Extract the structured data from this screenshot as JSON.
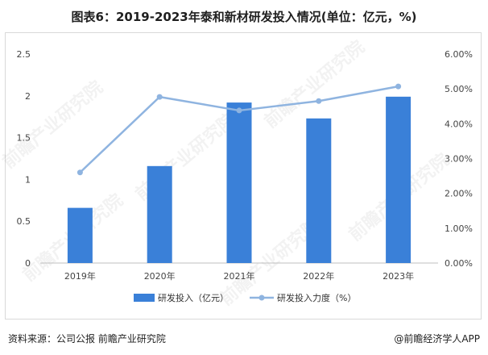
{
  "title": "图表6：2019-2023年泰和新材研发投入情况(单位：亿元，%)",
  "chart_data": {
    "type": "bar+line",
    "categories": [
      "2019年",
      "2020年",
      "2021年",
      "2022年",
      "2023年"
    ],
    "series": [
      {
        "name": "研发投入（亿元）",
        "type": "bar",
        "axis": "left",
        "color": "#3a80d8",
        "values": [
          0.66,
          1.16,
          1.92,
          1.73,
          1.99
        ]
      },
      {
        "name": "研发投入力度（%）",
        "type": "line",
        "axis": "right",
        "color": "#8fb4e0",
        "values": [
          2.6,
          4.77,
          4.38,
          4.65,
          5.07
        ]
      }
    ],
    "y_left": {
      "min": 0,
      "max": 2.5,
      "ticks": [
        "0",
        "0.5",
        "1",
        "1.5",
        "2",
        "2.5"
      ]
    },
    "y_right": {
      "min": 0,
      "max": 6,
      "ticks": [
        "0.00%",
        "1.00%",
        "2.00%",
        "3.00%",
        "4.00%",
        "5.00%",
        "6.00%"
      ]
    },
    "grid": false,
    "legend_position": "bottom"
  },
  "footer": {
    "source": "资料来源：公司公报 前瞻产业研究院",
    "credit": "@前瞻经济学人APP"
  },
  "watermark": {
    "text": "前瞻产业研究院"
  }
}
